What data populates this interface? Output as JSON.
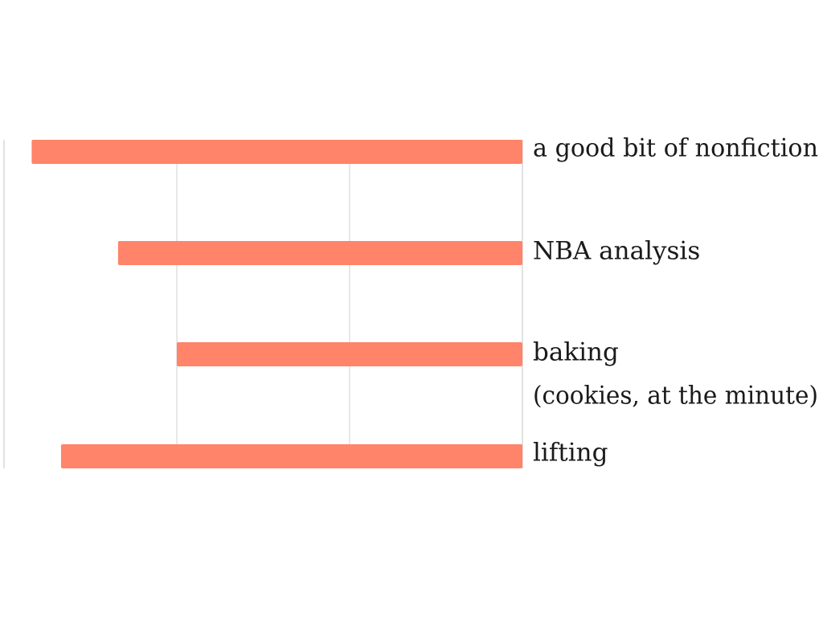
{
  "chart_data": {
    "type": "bar",
    "orientation": "horizontal",
    "direction": "right-to-left",
    "categories": [
      [
        "a good bit of nonfiction"
      ],
      [
        "NBA analysis"
      ],
      [
        "baking",
        "(cookies, at the minute)"
      ],
      [
        "lifting"
      ]
    ],
    "values": [
      2.84,
      2.34,
      2.0,
      2.67
    ],
    "xlim": [
      0,
      3
    ],
    "grid": true,
    "legend": "none",
    "bar_color": "#FF8469"
  }
}
